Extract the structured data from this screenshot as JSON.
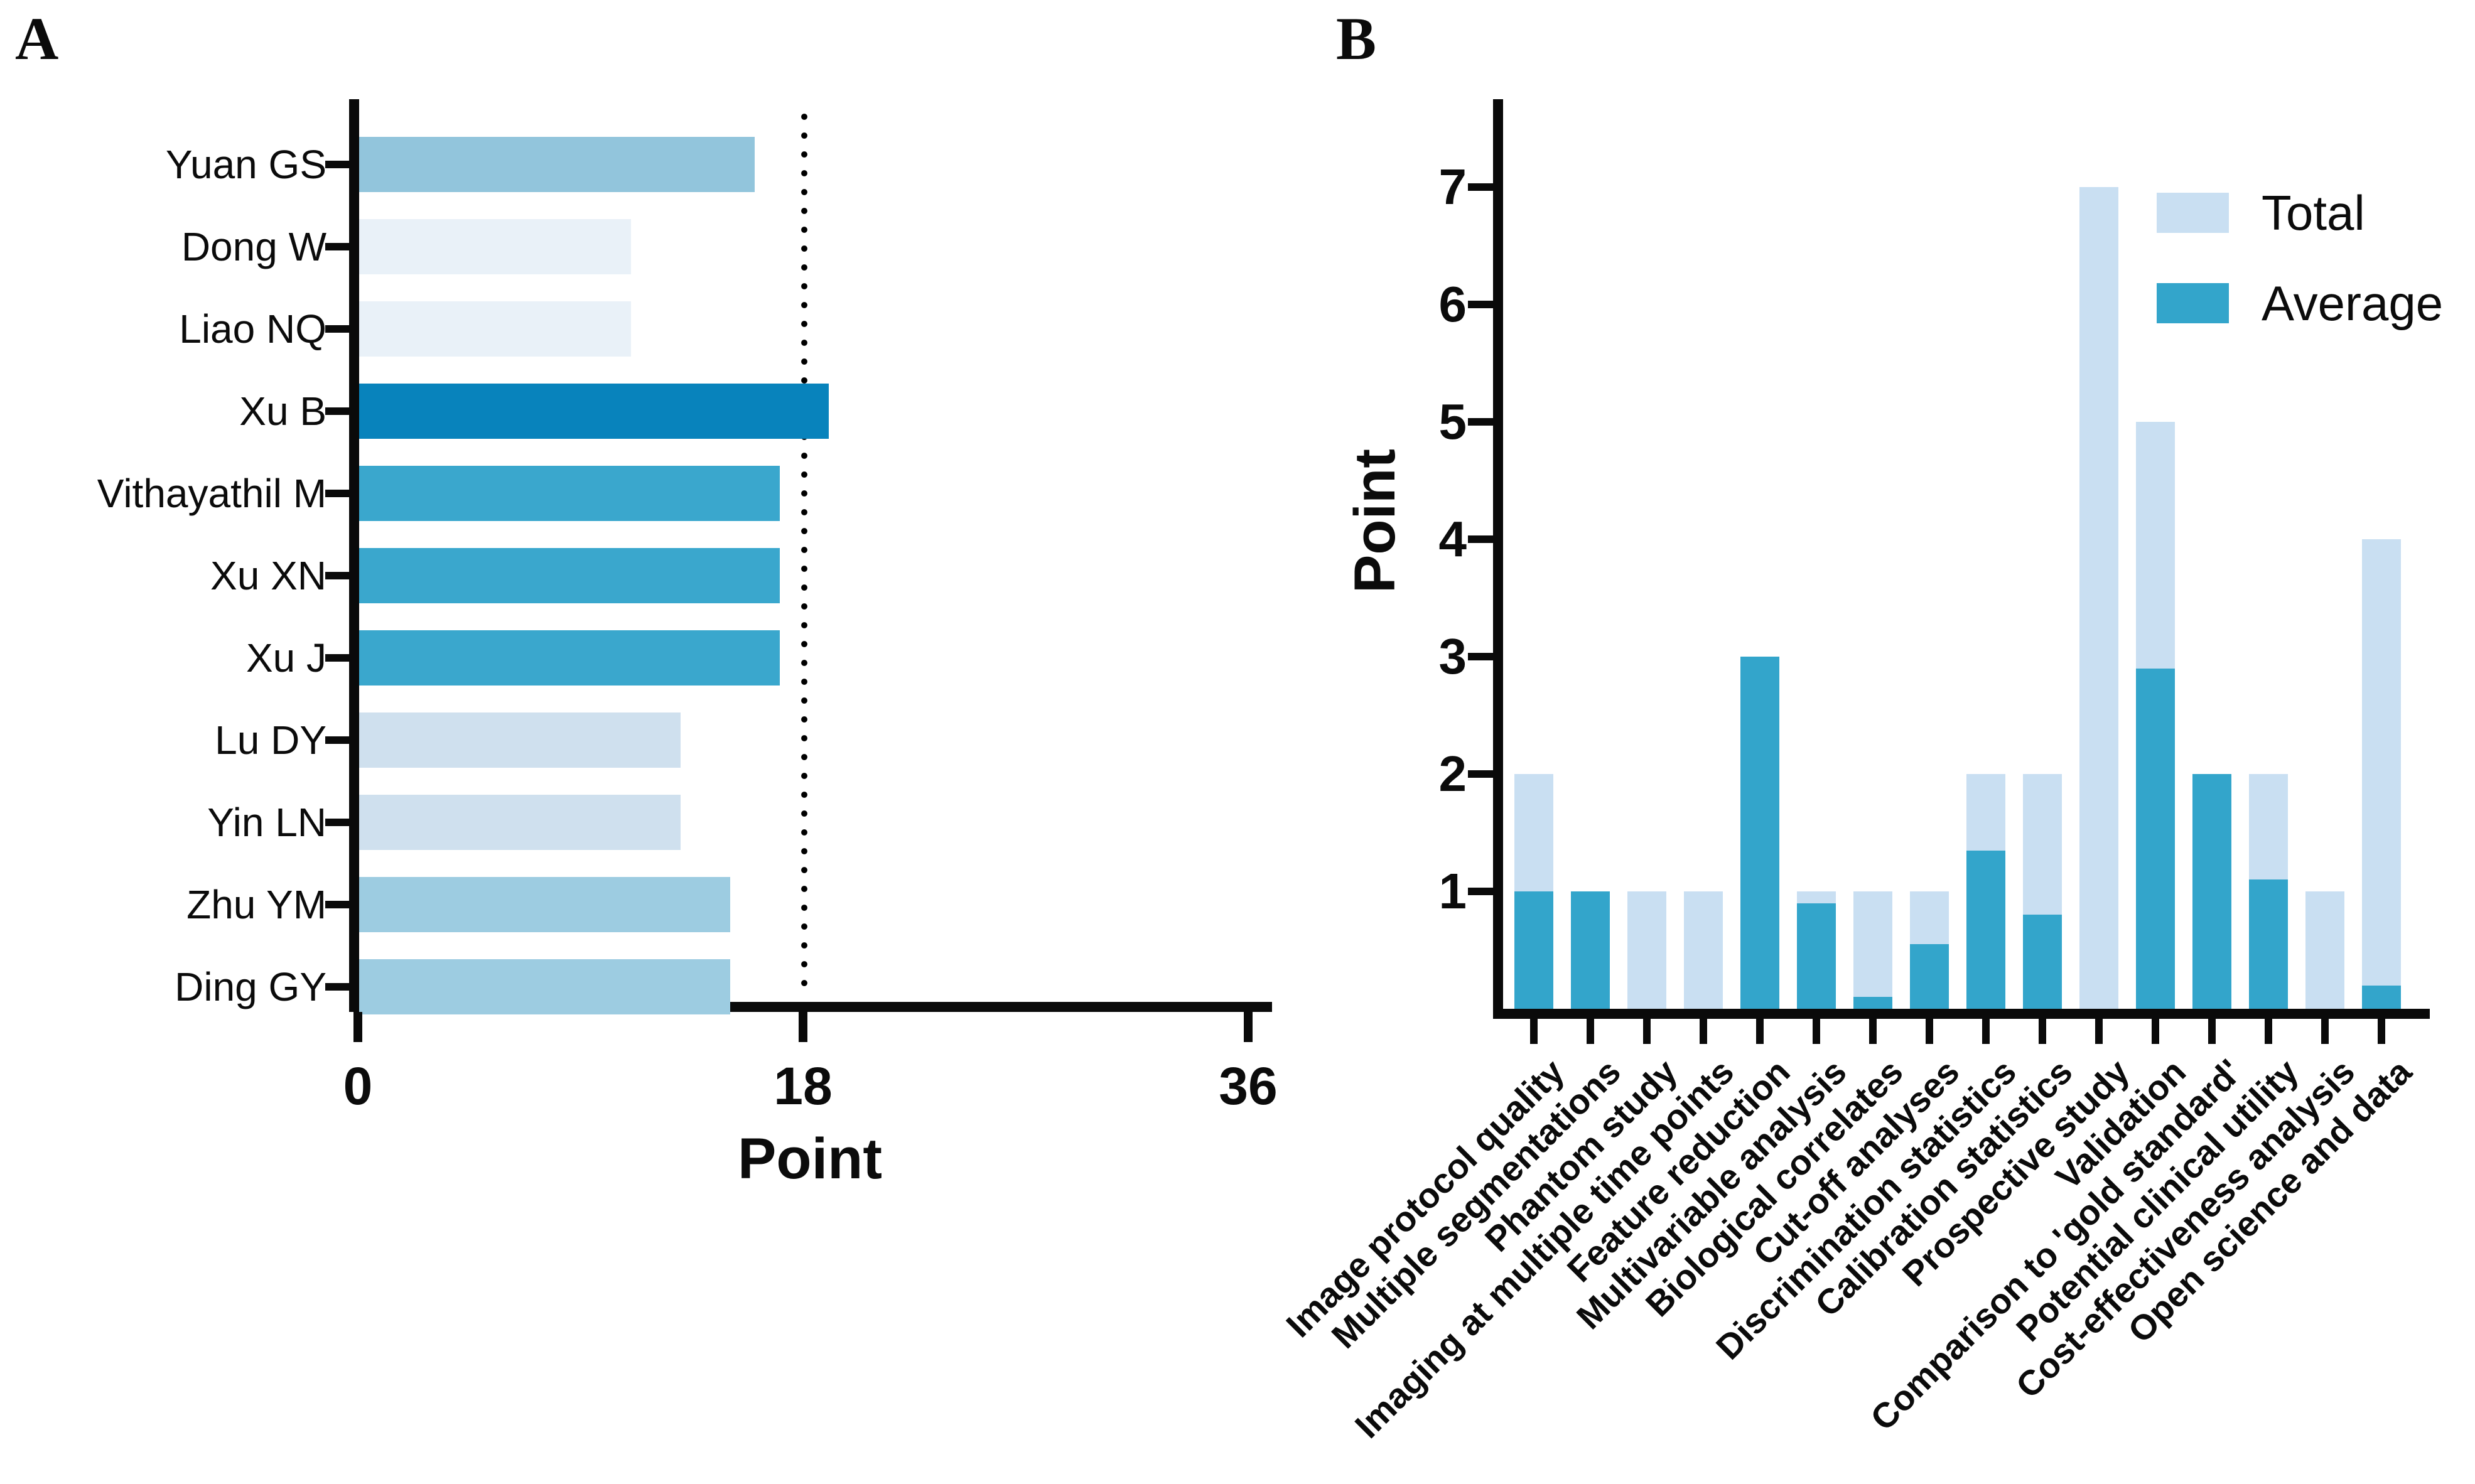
{
  "panel_a": {
    "letter": "A"
  },
  "panel_b": {
    "letter": "B"
  },
  "colors": {
    "axis": "#0a0a0a",
    "total": "#c9dff2",
    "average": "#33a5cb"
  },
  "chart_data": [
    {
      "id": "A",
      "type": "bar",
      "orientation": "horizontal",
      "xlabel": "Point",
      "xlim": [
        0,
        36
      ],
      "xticks": [
        "0",
        "18",
        "36"
      ],
      "xtick_values": [
        0,
        18,
        36
      ],
      "reference_line_x": 18,
      "grid": false,
      "categories": [
        "Yuan GS",
        "Dong W",
        "Liao NQ",
        "Xu B",
        "Vithayathil M",
        "Xu XN",
        "Xu J",
        "Lu DY",
        "Yin LN",
        "Zhu YM",
        "Ding GY"
      ],
      "values": [
        16,
        11,
        11,
        19,
        17,
        17,
        17,
        13,
        13,
        15,
        15
      ],
      "bar_colors": [
        "#92c5dc",
        "#e9f1f8",
        "#e9f1f8",
        "#0883bc",
        "#3aa7cd",
        "#3aa7cd",
        "#3aa7cd",
        "#cfe0ee",
        "#cfe0ee",
        "#9dcce1",
        "#9dcce1"
      ]
    },
    {
      "id": "B",
      "type": "bar",
      "orientation": "vertical",
      "grouping": "overlay",
      "ylabel": "Point",
      "ylim": [
        0,
        7.5
      ],
      "yticks": [
        1,
        2,
        3,
        4,
        5,
        6,
        7
      ],
      "grid": false,
      "legend_position": "upper-right",
      "legend": [
        {
          "label": "Total",
          "color": "#c9dff2"
        },
        {
          "label": "Average",
          "color": "#33a5cb"
        }
      ],
      "categories": [
        "Image protocol quality",
        "Multiple segmentations",
        "Phantom study",
        "Imaging at multiple time points",
        "Feature reduction",
        "Multivariable analysis",
        "Biological correlates",
        "Cut-off analyses",
        "Discrimination statistics",
        "Calibration statistics",
        "Prospective study",
        "Validation",
        "Comparison to 'gold standard'",
        "Potential clinical utility",
        "Cost-effectiveness analysis",
        "Open science and data"
      ],
      "series": [
        {
          "name": "Total",
          "values": [
            2,
            1,
            1,
            1,
            3,
            1,
            1,
            1,
            2,
            2,
            7,
            5,
            2,
            2,
            1,
            4
          ]
        },
        {
          "name": "Average",
          "values": [
            1,
            1,
            0,
            0,
            3,
            0.9,
            0.1,
            0.55,
            1.35,
            0.8,
            0,
            2.9,
            2,
            1.1,
            0,
            0.2
          ]
        }
      ]
    }
  ]
}
